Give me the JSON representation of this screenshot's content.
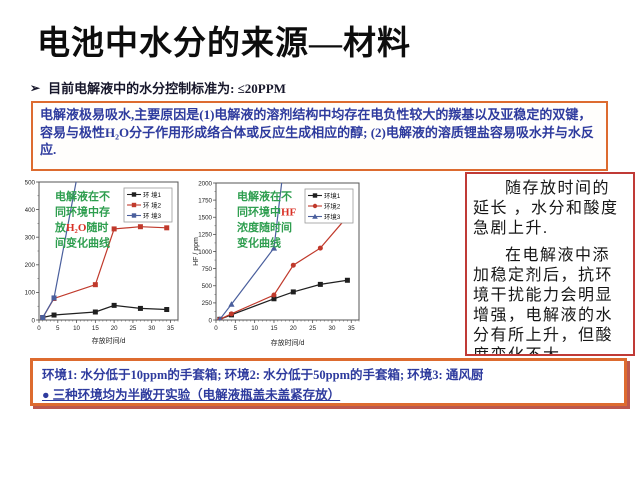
{
  "slide": {
    "title": "电池中水分的来源—材料",
    "bullet_icon": "➢",
    "bullet_text": "目前电解液中的水分控制标准为: ≤20PPM"
  },
  "info_box": {
    "text": "电解液极易吸水,主要原因是(1)电解液的溶剂结构中均存在电负性较大的羰基以及亚稳定的双键， 容易与极性H₂O分子作用形成络合体或反应生成相应的醇; (2)电解液的溶质锂盐容易吸水并与水反应."
  },
  "side_box": {
    "para1": "随存放时间的延长 ，水分和酸度急剧上升.",
    "para2": "在电解液中添加稳定剂后，抗环境干扰能力会明显增强，电解液的水分有所上升，但酸度变化不大."
  },
  "bottom_box": {
    "line1": "环境1: 水分低于10ppm的手套箱; 环境2: 水分低于50ppm的手套箱; 环境3: 通风厨",
    "line2": "● 三种环境均为半敞开实验（电解液瓶盖未盖紧存放）"
  },
  "colors": {
    "accent_orange": "#dd6b2f",
    "text_blue": "#2e3b9e",
    "box_red": "#c03a36",
    "annotation_green": "#2e9e4f",
    "highlight_red": "#d93025",
    "series_black": "#1f1f1f",
    "series_red": "#c0392b",
    "series_blue": "#4a5f9d"
  },
  "chart_data": [
    {
      "type": "line",
      "title": "",
      "annotation": "电解液在不\n同环境中存\n放[H₂O]随时\n间变化曲线",
      "xlabel": "存放时间/d",
      "ylabel": "",
      "xlim": [
        0,
        37
      ],
      "ylim": [
        0,
        500
      ],
      "xticks": [
        0,
        5,
        10,
        15,
        20,
        25,
        30,
        35
      ],
      "yticks": [
        0,
        100,
        200,
        300,
        400,
        500
      ],
      "xminor": 1,
      "yminor": 50,
      "grid": false,
      "legend_position": "top-right",
      "legend": [
        "环 境1",
        "环 境2",
        "环 境3"
      ],
      "series": [
        {
          "name": "环境1",
          "color": "#1f1f1f",
          "marker": "square",
          "x": [
            1,
            4,
            15,
            20,
            27,
            34
          ],
          "y": [
            9,
            18,
            29,
            53,
            42,
            38
          ]
        },
        {
          "name": "环境2",
          "color": "#c0392b",
          "marker": "square",
          "x": [
            1,
            4,
            15,
            20,
            27,
            34
          ],
          "y": [
            9,
            78,
            128,
            330,
            338,
            334
          ]
        },
        {
          "name": "环境3",
          "color": "#4a5f9d",
          "marker": "square",
          "x": [
            1,
            4,
            10.5
          ],
          "y": [
            9,
            80,
            545
          ]
        }
      ]
    },
    {
      "type": "line",
      "title": "",
      "annotation": "电解液在不\n同环境中[HF]\n浓度随时间\n变化曲线",
      "xlabel": "存放时间/d",
      "ylabel": "HF / ppm",
      "xlim": [
        0,
        37
      ],
      "ylim": [
        0,
        2000
      ],
      "xticks": [
        0,
        5,
        10,
        15,
        20,
        25,
        30,
        35
      ],
      "yticks": [
        0,
        250,
        500,
        750,
        1000,
        1250,
        1500,
        1750,
        2000
      ],
      "xminor": 1,
      "yminor": 125,
      "grid": false,
      "legend_position": "top-right",
      "legend": [
        "环境1",
        "环境2",
        "环境3"
      ],
      "series": [
        {
          "name": "环境1",
          "color": "#1f1f1f",
          "marker": "square",
          "x": [
            1,
            4,
            15,
            20,
            27,
            34
          ],
          "y": [
            10,
            75,
            310,
            410,
            520,
            580
          ]
        },
        {
          "name": "环境2",
          "color": "#c0392b",
          "marker": "circle",
          "x": [
            1,
            4,
            15,
            20,
            27,
            34
          ],
          "y": [
            10,
            90,
            365,
            800,
            1050,
            1510
          ]
        },
        {
          "name": "环境3",
          "color": "#4a5f9d",
          "marker": "triangle",
          "x": [
            1,
            4,
            15,
            17.3
          ],
          "y": [
            10,
            230,
            1050,
            2150
          ]
        }
      ]
    }
  ]
}
